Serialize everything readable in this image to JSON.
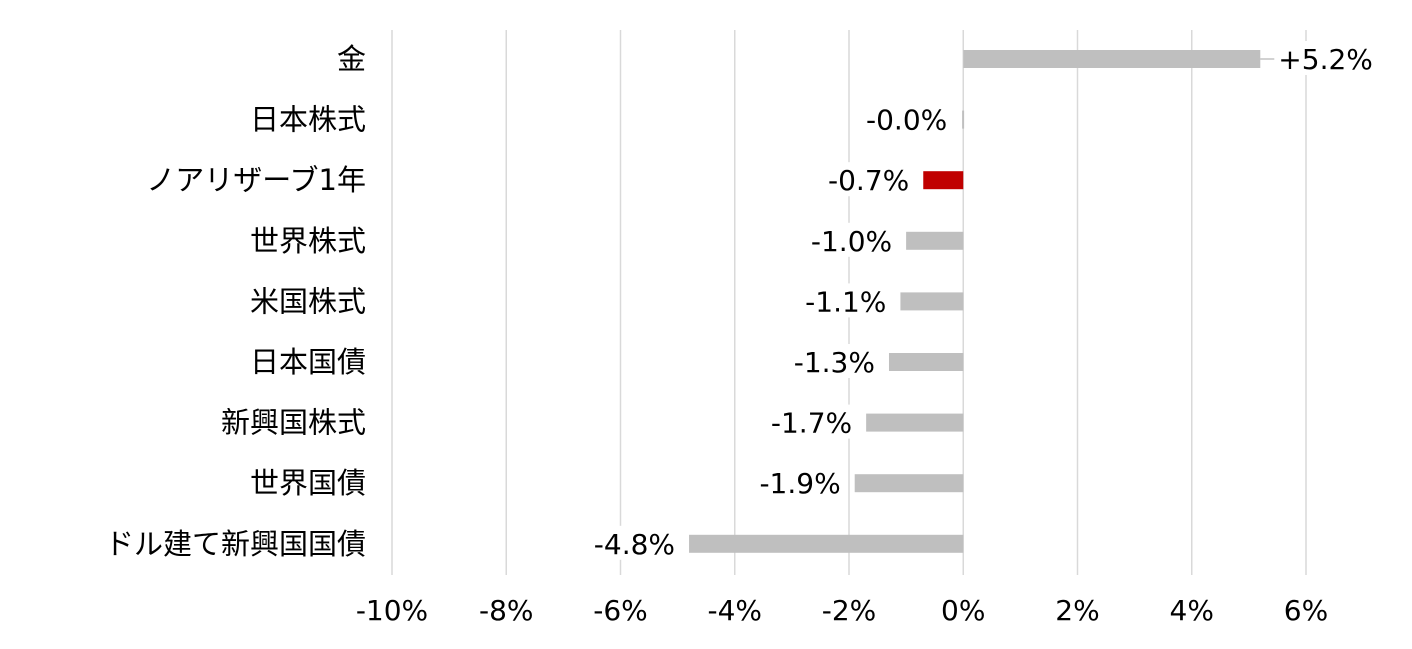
{
  "colors": {
    "bar_default": "#bfbfbf",
    "bar_highlight": "#c00000",
    "grid": "#d9d9d9"
  },
  "chart_data": {
    "type": "bar",
    "orientation": "horizontal",
    "title": "",
    "xlabel": "",
    "ylabel": "",
    "xlim": [
      -10,
      6
    ],
    "x_ticks": [
      -10,
      -8,
      -6,
      -4,
      -2,
      0,
      2,
      4,
      6
    ],
    "x_tick_labels": [
      "-10%",
      "-8%",
      "-6%",
      "-4%",
      "-2%",
      "0%",
      "2%",
      "4%",
      "6%"
    ],
    "grid": "vertical",
    "legend": "none",
    "categories": [
      "金",
      "日本株式",
      "ノアリザーブ1年",
      "世界株式",
      "米国株式",
      "日本国債",
      "新興国株式",
      "世界国債",
      "ドル建て新興国国債"
    ],
    "values": [
      5.2,
      -0.02,
      -0.7,
      -1.0,
      -1.1,
      -1.3,
      -1.7,
      -1.9,
      -4.8
    ],
    "data_labels": [
      "+5.2%",
      "-0.0%",
      "-0.7%",
      "-1.0%",
      "-1.1%",
      "-1.3%",
      "-1.7%",
      "-1.9%",
      "-4.8%"
    ],
    "highlight": "ノアリザーブ1年"
  }
}
